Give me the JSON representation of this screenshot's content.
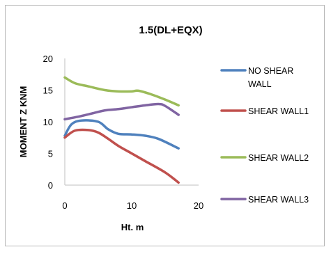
{
  "chart_data": {
    "type": "line",
    "title": "1.5(DL+EQX)",
    "xlabel": "Ht. m",
    "ylabel": "MOMENT Z KNM",
    "xlim": [
      0,
      20
    ],
    "ylim": [
      0,
      20
    ],
    "x_ticks": [
      "0",
      "10",
      "20"
    ],
    "y_ticks": [
      "0",
      "5",
      "10",
      "15",
      "20"
    ],
    "grid": false,
    "legend_position": "right",
    "series": [
      {
        "name": "NO SHEAR WALL",
        "legend_lines": [
          "NO SHEAR",
          "WALL"
        ],
        "color": "#4F81BD",
        "points": [
          [
            0,
            7.8
          ],
          [
            1,
            9.6
          ],
          [
            2.5,
            10.2
          ],
          [
            5,
            10.0
          ],
          [
            6.5,
            8.8
          ],
          [
            8,
            8.1
          ],
          [
            10,
            8.0
          ],
          [
            12,
            7.8
          ],
          [
            14,
            7.3
          ],
          [
            17,
            5.8
          ]
        ]
      },
      {
        "name": "SHEAR WALL1",
        "legend_lines": [
          "SHEAR WALL1"
        ],
        "color": "#C0504D",
        "points": [
          [
            0,
            7.5
          ],
          [
            1.5,
            8.6
          ],
          [
            3.5,
            8.7
          ],
          [
            5,
            8.3
          ],
          [
            6.5,
            7.3
          ],
          [
            8,
            6.2
          ],
          [
            10,
            5.0
          ],
          [
            12,
            3.8
          ],
          [
            15,
            2.0
          ],
          [
            17,
            0.4
          ]
        ]
      },
      {
        "name": "SHEAR WALL2",
        "legend_lines": [
          "SHEAR WALL2"
        ],
        "color": "#9BBB59",
        "points": [
          [
            0,
            17.0
          ],
          [
            1.5,
            16.1
          ],
          [
            3.5,
            15.6
          ],
          [
            6,
            15.0
          ],
          [
            8,
            14.8
          ],
          [
            10,
            14.8
          ],
          [
            11,
            14.9
          ],
          [
            13,
            14.3
          ],
          [
            15,
            13.5
          ],
          [
            17,
            12.6
          ]
        ]
      },
      {
        "name": "SHEAR WALL3",
        "legend_lines": [
          "SHEAR WALL3"
        ],
        "color": "#8064A2",
        "points": [
          [
            0,
            10.4
          ],
          [
            2,
            10.8
          ],
          [
            4,
            11.3
          ],
          [
            6,
            11.8
          ],
          [
            8,
            12.0
          ],
          [
            10,
            12.3
          ],
          [
            12,
            12.6
          ],
          [
            14,
            12.8
          ],
          [
            15,
            12.5
          ],
          [
            17,
            11.1
          ]
        ]
      }
    ]
  }
}
